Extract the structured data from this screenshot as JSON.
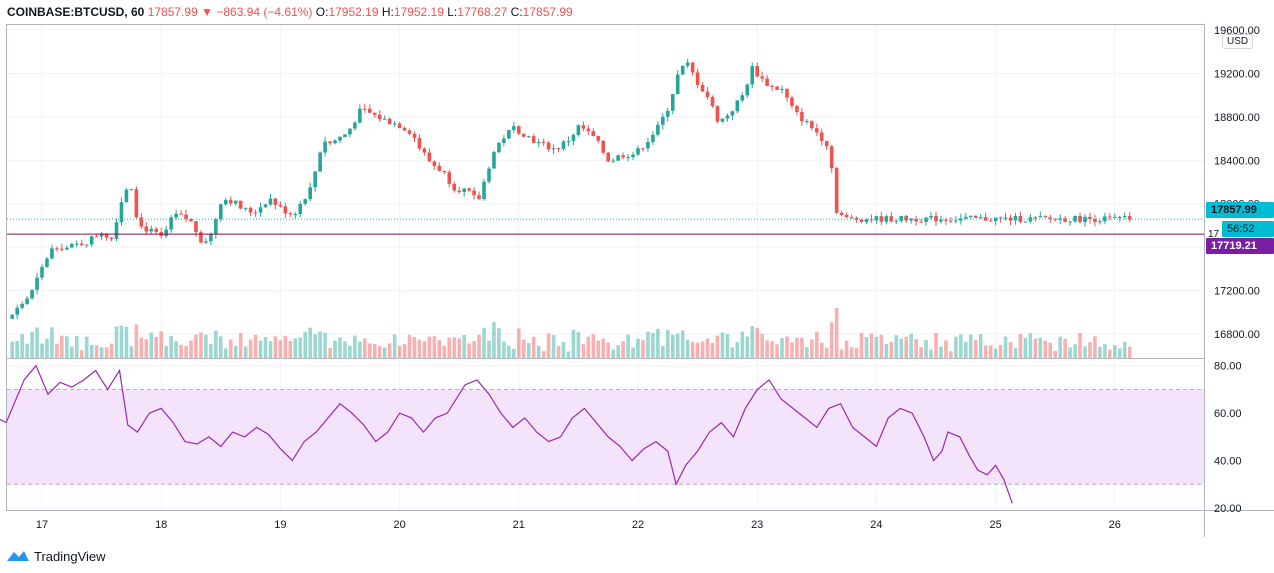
{
  "header": {
    "symbol": "COINBASE:BTCUSD, 60",
    "last": "17857.99",
    "change_arrow": "▼",
    "change": "−863.94 (−4.61%)",
    "o_label": "O:",
    "o": "17952.19",
    "h_label": "H:",
    "h": "17952.19",
    "l_label": "L:",
    "l": "17768.27",
    "c_label": "C:",
    "c": "17857.99"
  },
  "currency_badge": "USD",
  "price_tags": {
    "last": "17857.99",
    "countdown": "56:52",
    "line": "17719.21",
    "hidden_partial": "17"
  },
  "branding": "TradingView",
  "colors": {
    "up": "#26a69a",
    "down": "#ef5350",
    "rsi_line": "#9c27b0",
    "rsi_band": "#f3e3fb",
    "last_tag": "#00bcd4",
    "line_tag": "#7b1fa2"
  },
  "chart_data": [
    {
      "type": "candlestick",
      "title": "COINBASE:BTCUSD, 60",
      "y_ticks": [
        "16800.00",
        "17200.00",
        "17600.00",
        "18000.00",
        "18400.00",
        "18800.00",
        "19200.00",
        "19600.00"
      ],
      "ylim": [
        16550,
        19620
      ],
      "x_ticks": [
        "17",
        "18",
        "19",
        "20",
        "21",
        "22",
        "23",
        "24",
        "25",
        "26"
      ],
      "grid": true,
      "last_price": 17857.99,
      "horizontal_line": 17719.21,
      "anchors": [
        [
          "16.00",
          16700
        ],
        [
          "16.30",
          16820
        ],
        [
          "16.55",
          16760
        ],
        [
          "16.75",
          16930
        ],
        [
          "16.95",
          17170
        ],
        [
          "17.08",
          17500
        ],
        [
          "17.15",
          17620
        ],
        [
          "17.25",
          17590
        ],
        [
          "17.42",
          17650
        ],
        [
          "17.55",
          17750
        ],
        [
          "17.62",
          17660
        ],
        [
          "17.70",
          18000
        ],
        [
          "17.78",
          18230
        ],
        [
          "17.85",
          17800
        ],
        [
          "17.95",
          17750
        ],
        [
          "18.05",
          17680
        ],
        [
          "18.15",
          17900
        ],
        [
          "18.28",
          17850
        ],
        [
          "18.38",
          17660
        ],
        [
          "18.45",
          17680
        ],
        [
          "18.55",
          18050
        ],
        [
          "18.65",
          18020
        ],
        [
          "18.72",
          17950
        ],
        [
          "18.82",
          17920
        ],
        [
          "18.95",
          18050
        ],
        [
          "19.05",
          17950
        ],
        [
          "19.15",
          17900
        ],
        [
          "19.30",
          18150
        ],
        [
          "19.40",
          18600
        ],
        [
          "19.45",
          18550
        ],
        [
          "19.60",
          18650
        ],
        [
          "19.72",
          18870
        ],
        [
          "19.82",
          18820
        ],
        [
          "19.92",
          18770
        ],
        [
          "20.05",
          18720
        ],
        [
          "20.15",
          18650
        ],
        [
          "20.20",
          18530
        ],
        [
          "20.30",
          18380
        ],
        [
          "20.40",
          18300
        ],
        [
          "20.50",
          18150
        ],
        [
          "20.60",
          18120
        ],
        [
          "20.70",
          18020
        ],
        [
          "20.82",
          18450
        ],
        [
          "20.90",
          18600
        ],
        [
          "21.00",
          18700
        ],
        [
          "21.08",
          18650
        ],
        [
          "21.20",
          18560
        ],
        [
          "21.35",
          18500
        ],
        [
          "21.47",
          18600
        ],
        [
          "21.55",
          18720
        ],
        [
          "21.68",
          18600
        ],
        [
          "21.80",
          18390
        ],
        [
          "21.90",
          18450
        ],
        [
          "22.02",
          18460
        ],
        [
          "22.12",
          18580
        ],
        [
          "22.22",
          18720
        ],
        [
          "22.30",
          18900
        ],
        [
          "22.38",
          19200
        ],
        [
          "22.45",
          19300
        ],
        [
          "22.55",
          19100
        ],
        [
          "22.62",
          19000
        ],
        [
          "22.72",
          18750
        ],
        [
          "22.82",
          18850
        ],
        [
          "22.92",
          19000
        ],
        [
          "23.00",
          19250
        ],
        [
          "23.08",
          19150
        ],
        [
          "23.15",
          19080
        ],
        [
          "23.25",
          19050
        ],
        [
          "23.35",
          18850
        ],
        [
          "23.45",
          18750
        ],
        [
          "23.55",
          18650
        ],
        [
          "23.65",
          18520
        ],
        [
          "23.70",
          17950
        ],
        [
          "23.78",
          17860
        ]
      ],
      "note": "x in days (16 = Nov 16 00:00 is left of first label '17')"
    },
    {
      "type": "bar",
      "title": "Volume",
      "colors_follow_candle": true
    },
    {
      "type": "line",
      "title": "RSI",
      "y_ticks": [
        "20.00",
        "40.00",
        "60.00",
        "80.00"
      ],
      "ylim": [
        20,
        82
      ],
      "band": [
        30,
        70
      ],
      "x_ticks": [
        "17",
        "18",
        "19",
        "20",
        "21",
        "22",
        "23",
        "24",
        "25",
        "26"
      ],
      "points": [
        [
          16.0,
          78
        ],
        [
          16.1,
          80
        ],
        [
          16.2,
          70
        ],
        [
          16.3,
          68
        ],
        [
          16.4,
          57
        ],
        [
          16.55,
          60
        ],
        [
          16.7,
          56
        ],
        [
          16.85,
          74
        ],
        [
          16.95,
          80
        ],
        [
          17.05,
          68
        ],
        [
          17.15,
          73
        ],
        [
          17.25,
          71
        ],
        [
          17.35,
          74
        ],
        [
          17.45,
          78
        ],
        [
          17.55,
          70
        ],
        [
          17.65,
          78
        ],
        [
          17.72,
          55
        ],
        [
          17.8,
          52
        ],
        [
          17.9,
          60
        ],
        [
          18.0,
          62
        ],
        [
          18.1,
          56
        ],
        [
          18.2,
          48
        ],
        [
          18.3,
          47
        ],
        [
          18.4,
          50
        ],
        [
          18.5,
          46
        ],
        [
          18.6,
          52
        ],
        [
          18.7,
          50
        ],
        [
          18.8,
          54
        ],
        [
          18.9,
          51
        ],
        [
          19.0,
          45
        ],
        [
          19.1,
          40
        ],
        [
          19.2,
          48
        ],
        [
          19.3,
          52
        ],
        [
          19.4,
          58
        ],
        [
          19.5,
          64
        ],
        [
          19.6,
          60
        ],
        [
          19.7,
          55
        ],
        [
          19.8,
          48
        ],
        [
          19.9,
          52
        ],
        [
          20.0,
          60
        ],
        [
          20.1,
          58
        ],
        [
          20.2,
          52
        ],
        [
          20.3,
          58
        ],
        [
          20.4,
          60
        ],
        [
          20.55,
          72
        ],
        [
          20.65,
          74
        ],
        [
          20.75,
          68
        ],
        [
          20.85,
          60
        ],
        [
          20.95,
          54
        ],
        [
          21.05,
          58
        ],
        [
          21.15,
          52
        ],
        [
          21.25,
          48
        ],
        [
          21.35,
          50
        ],
        [
          21.45,
          58
        ],
        [
          21.55,
          62
        ],
        [
          21.65,
          56
        ],
        [
          21.75,
          50
        ],
        [
          21.85,
          46
        ],
        [
          21.95,
          40
        ],
        [
          22.05,
          45
        ],
        [
          22.15,
          48
        ],
        [
          22.25,
          44
        ],
        [
          22.32,
          30
        ],
        [
          22.4,
          38
        ],
        [
          22.5,
          44
        ],
        [
          22.6,
          52
        ],
        [
          22.7,
          56
        ],
        [
          22.8,
          50
        ],
        [
          22.9,
          62
        ],
        [
          23.0,
          70
        ],
        [
          23.1,
          74
        ],
        [
          23.2,
          66
        ],
        [
          23.3,
          62
        ],
        [
          23.4,
          58
        ],
        [
          23.5,
          54
        ],
        [
          23.6,
          62
        ],
        [
          23.7,
          64
        ],
        [
          23.8,
          54
        ],
        [
          23.9,
          50
        ],
        [
          24.0,
          46
        ],
        [
          24.1,
          58
        ],
        [
          24.2,
          62
        ],
        [
          24.3,
          60
        ],
        [
          24.4,
          50
        ],
        [
          24.48,
          40
        ],
        [
          24.55,
          44
        ],
        [
          24.6,
          52
        ],
        [
          24.7,
          50
        ],
        [
          24.78,
          42
        ],
        [
          24.85,
          36
        ],
        [
          24.93,
          34
        ],
        [
          25.0,
          38
        ],
        [
          25.07,
          32
        ],
        [
          25.14,
          22
        ]
      ]
    }
  ]
}
